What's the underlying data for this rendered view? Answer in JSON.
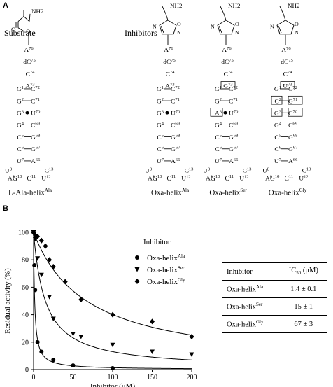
{
  "panel_a": {
    "label": "A",
    "substrate_header": "Substrate",
    "inhibitors_header": "Inhibitors",
    "nh2": "NH2",
    "ring_o": "O",
    "ring_n": "N",
    "construct_names": [
      "L-Ala-helix",
      "Oxa-helix",
      "Oxa-helix",
      "Oxa-helix"
    ],
    "construct_sups": [
      "Ala",
      "Ala",
      "Ser",
      "Gly"
    ],
    "single_strand": [
      "A76",
      "dC75",
      "C74"
    ],
    "nt73": [
      "A73",
      "A73",
      "G73",
      "U73"
    ],
    "pairs": [
      [
        "G1",
        "C72"
      ],
      [
        "G2",
        "C71"
      ],
      [
        "G3",
        "U70"
      ],
      [
        "G4",
        "C69"
      ],
      [
        "C5",
        "G68"
      ],
      [
        "C6",
        "G67"
      ],
      [
        "U7",
        "A66"
      ]
    ],
    "pair3_variants": [
      [
        "G3",
        "U70"
      ],
      [
        "G3",
        "U70"
      ],
      [
        "A3",
        "U70"
      ],
      [
        "G3",
        "C70"
      ]
    ],
    "pair2_gly": [
      "C2",
      "G71"
    ],
    "loop": {
      "u8": "U8",
      "c13": "C13",
      "a9": "A9",
      "u12": "U12",
      "g10": "G10",
      "c11": "C11"
    }
  },
  "panel_b": {
    "label": "B",
    "legend_title": "Inhibitor",
    "legend": [
      {
        "name": "Oxa-helix",
        "sup": "Ala",
        "marker": "circle"
      },
      {
        "name": "Oxa-helix",
        "sup": "Ser",
        "marker": "triangle-down"
      },
      {
        "name": "Oxa-helix",
        "sup": "Gly",
        "marker": "diamond"
      }
    ],
    "table": {
      "col1": "Inhibitor",
      "col2": "IC50 (μM)",
      "rows": [
        {
          "name": "Oxa-helix",
          "sup": "Ala",
          "value": "1.4 ± 0.1"
        },
        {
          "name": "Oxa-helix",
          "sup": "Ser",
          "value": "15 ± 1"
        },
        {
          "name": "Oxa-helix",
          "sup": "Gly",
          "value": "67 ± 3"
        }
      ]
    }
  },
  "chart_data": {
    "type": "scatter",
    "xlabel": "Inhibitor (μM)",
    "ylabel": "Residual activity (%)",
    "xlim": [
      0,
      200
    ],
    "ylim": [
      0,
      100
    ],
    "xticks": [
      0,
      50,
      100,
      150,
      200
    ],
    "yticks": [
      0,
      20,
      40,
      60,
      80,
      100
    ],
    "series": [
      {
        "name": "Oxa-helix Ala",
        "marker": "circle",
        "x": [
          0,
          1,
          2,
          5,
          10,
          25,
          50,
          100
        ],
        "y": [
          100,
          76,
          58,
          20,
          13,
          7,
          3,
          1
        ]
      },
      {
        "name": "Oxa-helix Ser",
        "marker": "triangle-down",
        "x": [
          0,
          2,
          5,
          10,
          20,
          25,
          50,
          60,
          100,
          150,
          200
        ],
        "y": [
          100,
          95,
          81,
          69,
          53,
          37,
          26,
          24,
          18,
          13,
          11
        ]
      },
      {
        "name": "Oxa-helix Gly",
        "marker": "diamond",
        "x": [
          0,
          2,
          5,
          10,
          15,
          20,
          25,
          40,
          60,
          100,
          150,
          200
        ],
        "y": [
          100,
          98,
          97,
          94,
          90,
          80,
          75,
          64,
          51,
          40,
          35,
          24
        ]
      }
    ],
    "fits": [
      {
        "ic50": 1.4
      },
      {
        "ic50": 15
      },
      {
        "ic50": 67
      }
    ]
  }
}
